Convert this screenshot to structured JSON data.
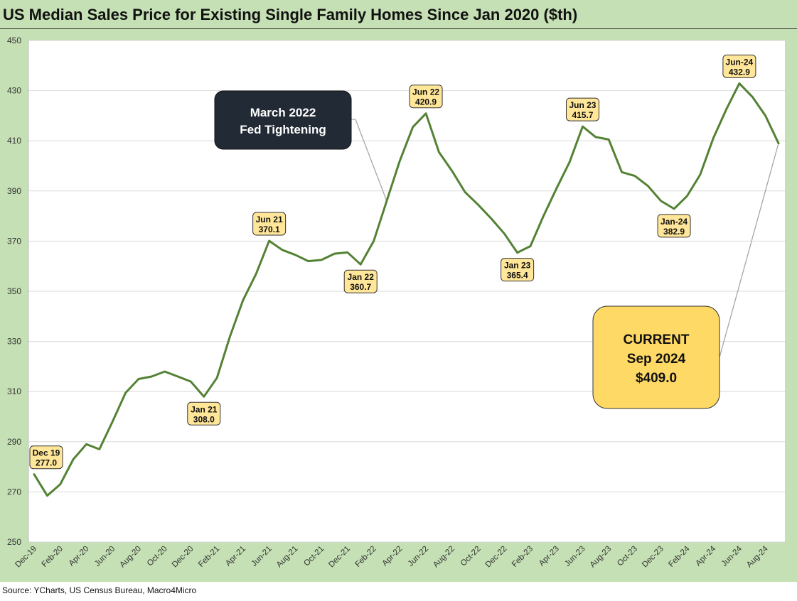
{
  "chart_data": {
    "type": "line",
    "title": "US Median Sales Price for Existing Single Family Homes Since Jan 2020 ($th)",
    "source": "Source: YCharts, US Census Bureau, Macro4Micro",
    "xlabel": "",
    "ylabel": "",
    "ylim": [
      250,
      450
    ],
    "yticks": [
      250,
      270,
      290,
      310,
      330,
      350,
      370,
      390,
      410,
      430,
      450
    ],
    "grid": true,
    "line_color": "#548235",
    "xtick_labels": [
      "Dec-19",
      "Feb-20",
      "Apr-20",
      "Jun-20",
      "Aug-20",
      "Oct-20",
      "Dec-20",
      "Feb-21",
      "Apr-21",
      "Jun-21",
      "Aug-21",
      "Oct-21",
      "Dec-21",
      "Feb-22",
      "Apr-22",
      "Jun-22",
      "Aug-22",
      "Oct-22",
      "Dec-22",
      "Feb-23",
      "Apr-23",
      "Jun-23",
      "Aug-23",
      "Oct-23",
      "Dec-23",
      "Feb-24",
      "Apr-24",
      "Jun-24",
      "Aug-24"
    ],
    "x": [
      "Dec-19",
      "Jan-20",
      "Feb-20",
      "Mar-20",
      "Apr-20",
      "May-20",
      "Jun-20",
      "Jul-20",
      "Aug-20",
      "Sep-20",
      "Oct-20",
      "Nov-20",
      "Dec-20",
      "Jan-21",
      "Feb-21",
      "Mar-21",
      "Apr-21",
      "May-21",
      "Jun-21",
      "Jul-21",
      "Aug-21",
      "Sep-21",
      "Oct-21",
      "Nov-21",
      "Dec-21",
      "Jan-22",
      "Feb-22",
      "Mar-22",
      "Apr-22",
      "May-22",
      "Jun-22",
      "Jul-22",
      "Aug-22",
      "Sep-22",
      "Oct-22",
      "Nov-22",
      "Dec-22",
      "Jan-23",
      "Feb-23",
      "Mar-23",
      "Apr-23",
      "May-23",
      "Jun-23",
      "Jul-23",
      "Aug-23",
      "Sep-23",
      "Oct-23",
      "Nov-23",
      "Dec-23",
      "Jan-24",
      "Feb-24",
      "Mar-24",
      "Apr-24",
      "May-24",
      "Jun-24",
      "Jul-24",
      "Aug-24",
      "Sep-24"
    ],
    "values": [
      277.0,
      268.5,
      273.0,
      283.0,
      289.0,
      287.0,
      298.0,
      309.5,
      315.0,
      316.0,
      318.0,
      316.0,
      314.0,
      308.0,
      315.5,
      332.0,
      346.5,
      357.0,
      370.1,
      366.5,
      364.5,
      362.0,
      362.5,
      365.0,
      365.5,
      360.7,
      370.0,
      386.0,
      402.0,
      415.5,
      420.9,
      405.5,
      398.0,
      389.5,
      384.5,
      379.0,
      373.0,
      365.4,
      368.0,
      380.0,
      391.0,
      401.5,
      415.7,
      411.5,
      410.5,
      397.5,
      396.0,
      392.0,
      386.0,
      382.9,
      388.0,
      396.5,
      411.0,
      422.5,
      432.9,
      427.5,
      420.0,
      409.0
    ],
    "point_labels": [
      {
        "index": 0,
        "line1": "Dec 19",
        "line2": "277.0",
        "position": "above"
      },
      {
        "index": 13,
        "line1": "Jan 21",
        "line2": "308.0",
        "position": "below"
      },
      {
        "index": 18,
        "line1": "Jun 21",
        "line2": "370.1",
        "position": "above"
      },
      {
        "index": 25,
        "line1": "Jan 22",
        "line2": "360.7",
        "position": "below"
      },
      {
        "index": 30,
        "line1": "Jun 22",
        "line2": "420.9",
        "position": "above"
      },
      {
        "index": 37,
        "line1": "Jan 23",
        "line2": "365.4",
        "position": "below"
      },
      {
        "index": 42,
        "line1": "Jun 23",
        "line2": "415.7",
        "position": "above"
      },
      {
        "index": 49,
        "line1": "Jan-24",
        "line2": "382.9",
        "position": "below"
      },
      {
        "index": 54,
        "line1": "Jun-24",
        "line2": "432.9",
        "position": "above"
      }
    ],
    "annotations": [
      {
        "id": "fed",
        "lines": [
          "March 2022",
          "Fed Tightening"
        ],
        "points_to_index": 27,
        "style": "dark"
      },
      {
        "id": "current",
        "lines": [
          "CURRENT",
          "Sep 2024",
          "$409.0"
        ],
        "points_to_index": 57,
        "style": "gold"
      }
    ]
  }
}
